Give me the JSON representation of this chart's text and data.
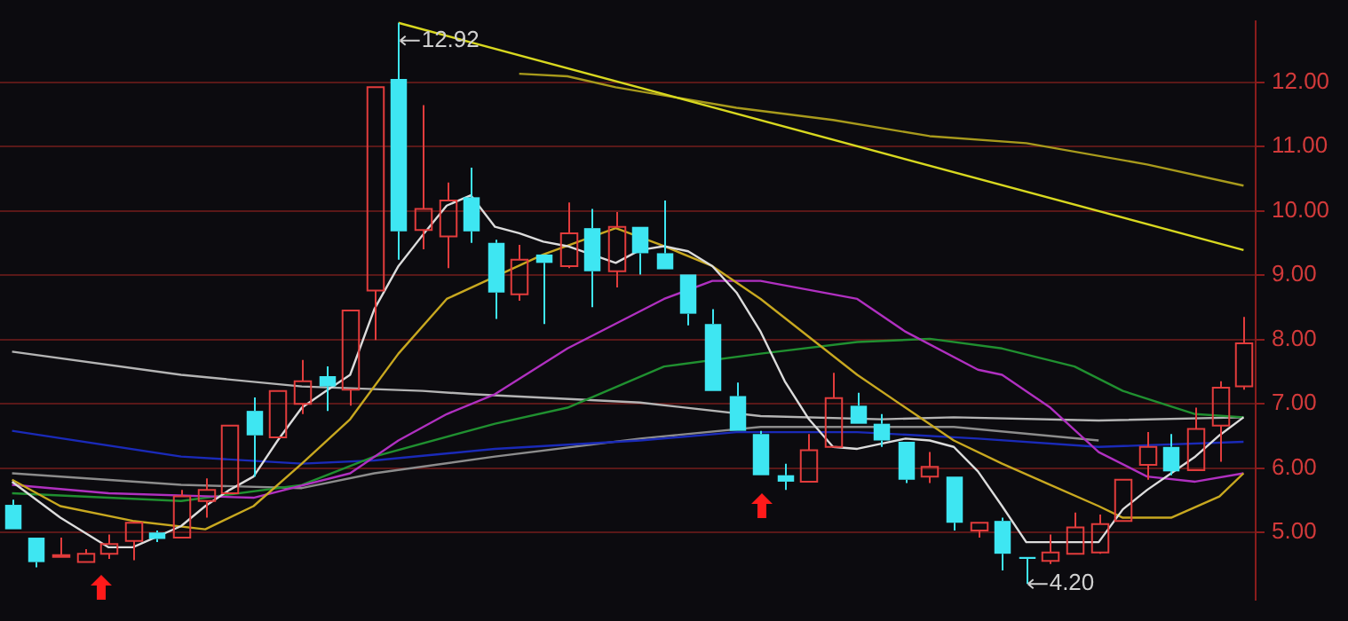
{
  "chart_data": {
    "type": "candlestick",
    "categories": [
      null,
      null,
      null,
      null,
      null,
      null,
      null,
      null,
      null,
      null,
      null,
      null,
      null,
      null,
      null,
      null,
      null,
      null,
      null,
      null,
      null,
      null,
      null,
      null,
      null,
      null,
      null,
      null,
      null,
      null,
      null,
      null,
      null,
      null,
      null,
      null,
      null,
      null,
      null,
      null,
      null,
      null,
      null,
      null,
      null,
      null,
      null,
      null,
      null,
      null,
      null,
      null
    ],
    "ohlc": [
      [
        5.43,
        5.51,
        5.05,
        5.05
      ],
      [
        4.92,
        4.92,
        4.46,
        4.54
      ],
      [
        4.62,
        4.92,
        4.62,
        4.65
      ],
      [
        4.54,
        4.74,
        4.54,
        4.67
      ],
      [
        4.67,
        4.97,
        4.59,
        4.82
      ],
      [
        4.87,
        5.17,
        4.57,
        5.15
      ],
      [
        5.0,
        5.03,
        4.85,
        4.9
      ],
      [
        4.92,
        5.66,
        4.92,
        5.56
      ],
      [
        5.49,
        5.84,
        5.23,
        5.66
      ],
      [
        5.61,
        6.66,
        5.61,
        6.66
      ],
      [
        6.89,
        7.1,
        5.87,
        6.51
      ],
      [
        6.48,
        7.2,
        6.48,
        7.2
      ],
      [
        7.0,
        7.68,
        6.84,
        7.35
      ],
      [
        7.43,
        7.58,
        6.89,
        7.27
      ],
      [
        7.22,
        8.45,
        6.97,
        8.45
      ],
      [
        8.76,
        11.92,
        7.99,
        11.92
      ],
      [
        12.05,
        12.92,
        9.24,
        9.68
      ],
      [
        9.7,
        11.64,
        9.4,
        10.03
      ],
      [
        9.6,
        10.44,
        9.11,
        10.16
      ],
      [
        10.21,
        10.67,
        9.5,
        9.68
      ],
      [
        9.5,
        9.55,
        8.32,
        8.73
      ],
      [
        8.7,
        9.47,
        8.6,
        9.24
      ],
      [
        9.32,
        9.32,
        8.24,
        9.19
      ],
      [
        9.14,
        10.13,
        9.11,
        9.65
      ],
      [
        9.73,
        10.03,
        8.5,
        9.06
      ],
      [
        9.06,
        9.98,
        8.81,
        9.75
      ],
      [
        9.75,
        9.75,
        9.01,
        9.34
      ],
      [
        9.34,
        10.16,
        9.09,
        9.09
      ],
      [
        9.01,
        9.01,
        8.22,
        8.4
      ],
      [
        8.24,
        8.47,
        7.2,
        7.2
      ],
      [
        7.12,
        7.33,
        6.58,
        6.58
      ],
      [
        6.53,
        6.58,
        5.89,
        5.89
      ],
      [
        5.89,
        6.07,
        5.66,
        5.79
      ],
      [
        5.79,
        6.53,
        5.79,
        6.28
      ],
      [
        6.33,
        7.48,
        6.33,
        7.09
      ],
      [
        6.97,
        7.17,
        6.69,
        6.69
      ],
      [
        6.69,
        6.84,
        6.33,
        6.43
      ],
      [
        6.41,
        6.41,
        5.77,
        5.82
      ],
      [
        5.87,
        6.25,
        5.77,
        6.02
      ],
      [
        5.87,
        5.87,
        5.03,
        5.15
      ],
      [
        5.03,
        5.15,
        4.92,
        5.15
      ],
      [
        5.18,
        5.23,
        4.41,
        4.67
      ],
      [
        4.62,
        4.62,
        4.2,
        4.59
      ],
      [
        4.56,
        4.97,
        4.51,
        4.69
      ],
      [
        4.67,
        5.31,
        4.67,
        5.08
      ],
      [
        4.69,
        5.28,
        4.67,
        5.13
      ],
      [
        5.18,
        5.82,
        5.18,
        5.82
      ],
      [
        6.05,
        6.56,
        5.82,
        6.33
      ],
      [
        6.33,
        6.53,
        5.89,
        5.95
      ],
      [
        5.97,
        6.94,
        5.97,
        6.61
      ],
      [
        6.66,
        7.35,
        6.1,
        7.25
      ],
      [
        7.27,
        8.35,
        7.22,
        7.94
      ]
    ],
    "colors": [
      "#3ee6f2",
      "#3ee6f2",
      "#e23c3c",
      "#e23c3c",
      "#e23c3c",
      "#e23c3c",
      "#3ee6f2",
      "#e23c3c",
      "#e23c3c",
      "#e23c3c",
      "#3ee6f2",
      "#e23c3c",
      "#e23c3c",
      "#3ee6f2",
      "#e23c3c",
      "#e23c3c",
      "#3ee6f2",
      "#e23c3c",
      "#e23c3c",
      "#3ee6f2",
      "#3ee6f2",
      "#e23c3c",
      "#3ee6f2",
      "#e23c3c",
      "#3ee6f2",
      "#e23c3c",
      "#3ee6f2",
      "#3ee6f2",
      "#3ee6f2",
      "#3ee6f2",
      "#3ee6f2",
      "#3ee6f2",
      "#3ee6f2",
      "#e23c3c",
      "#e23c3c",
      "#3ee6f2",
      "#3ee6f2",
      "#3ee6f2",
      "#e23c3c",
      "#3ee6f2",
      "#e23c3c",
      "#3ee6f2",
      "#3ee6f2",
      "#e23c3c",
      "#e23c3c",
      "#e23c3c",
      "#e23c3c",
      "#e23c3c",
      "#3ee6f2",
      "#e23c3c",
      "#e23c3c",
      "#e23c3c"
    ],
    "series": [
      {
        "type": "line",
        "color": "#dcdcdc",
        "values": [
          5.79,
          null,
          5.23,
          null,
          4.77,
          4.77,
          null,
          5.1,
          5.41,
          5.66,
          5.87,
          6.43,
          6.94,
          7.2,
          7.45,
          8.47,
          9.14,
          9.62,
          10.08,
          10.24,
          9.75,
          9.65,
          9.52,
          9.45,
          null,
          9.19,
          9.39,
          9.45,
          9.37,
          9.14,
          8.73,
          8.12,
          7.35,
          6.76,
          6.33,
          6.3,
          6.38,
          6.46,
          6.43,
          6.33,
          5.95,
          5.41,
          4.85,
          4.85,
          4.85,
          4.85,
          5.36,
          5.66,
          5.92,
          6.18,
          6.51,
          6.79
        ]
      },
      {
        "type": "line",
        "color": "#c8a820",
        "values": [
          5.82,
          null,
          5.41,
          null,
          null,
          5.18,
          null,
          null,
          5.05,
          null,
          5.41,
          null,
          6.07,
          null,
          6.76,
          null,
          7.78,
          null,
          8.63,
          null,
          null,
          null,
          9.32,
          null,
          null,
          9.73,
          null,
          9.45,
          null,
          9.14,
          null,
          8.63,
          null,
          8.04,
          null,
          7.45,
          null,
          6.94,
          null,
          6.43,
          null,
          6.07,
          null,
          5.74,
          null,
          5.41,
          5.23,
          null,
          5.23,
          null,
          5.56,
          5.92
        ]
      },
      {
        "type": "line",
        "color": "#b030c0",
        "values": [
          5.74,
          null,
          null,
          null,
          5.61,
          null,
          null,
          null,
          null,
          null,
          5.54,
          null,
          null,
          null,
          5.92,
          null,
          6.43,
          null,
          6.84,
          null,
          7.15,
          null,
          null,
          7.86,
          null,
          null,
          null,
          8.63,
          null,
          8.91,
          null,
          8.91,
          null,
          null,
          null,
          8.63,
          null,
          8.12,
          null,
          null,
          7.53,
          7.45,
          null,
          6.94,
          null,
          6.25,
          null,
          5.87,
          null,
          5.79,
          null,
          5.92
        ]
      },
      {
        "type": "line",
        "color": "#209030",
        "values": [
          5.61,
          null,
          null,
          null,
          null,
          null,
          null,
          5.49,
          null,
          null,
          null,
          null,
          5.74,
          null,
          null,
          6.18,
          null,
          null,
          null,
          null,
          6.69,
          null,
          null,
          6.94,
          null,
          null,
          null,
          7.58,
          null,
          null,
          null,
          7.78,
          null,
          null,
          null,
          7.96,
          null,
          null,
          8.01,
          null,
          null,
          7.86,
          null,
          null,
          7.58,
          null,
          7.2,
          null,
          null,
          6.84,
          null,
          6.79
        ]
      },
      {
        "type": "line",
        "color": "#1a2ab8",
        "values": [
          6.58,
          null,
          null,
          null,
          null,
          null,
          null,
          6.18,
          null,
          null,
          null,
          null,
          6.07,
          null,
          null,
          6.12,
          null,
          null,
          null,
          null,
          6.3,
          null,
          null,
          null,
          null,
          null,
          6.43,
          null,
          null,
          null,
          6.56,
          null,
          null,
          null,
          null,
          6.56,
          null,
          null,
          null,
          null,
          6.46,
          null,
          null,
          null,
          null,
          6.33,
          null,
          null,
          null,
          null,
          null,
          6.41
        ]
      },
      {
        "type": "line",
        "color": "#b4b4b4",
        "values": [
          7.81,
          null,
          null,
          null,
          null,
          null,
          null,
          7.45,
          null,
          null,
          null,
          null,
          7.27,
          null,
          null,
          null,
          null,
          7.2,
          null,
          7.15,
          null,
          null,
          null,
          null,
          null,
          null,
          7.02,
          null,
          null,
          null,
          null,
          6.81,
          null,
          null,
          null,
          null,
          6.76,
          null,
          null,
          6.79,
          null,
          null,
          null,
          null,
          null,
          6.74,
          null,
          null,
          null,
          null,
          null,
          6.79
        ]
      },
      {
        "type": "line",
        "color": "#8c8c8c",
        "values": [
          5.92,
          null,
          null,
          null,
          null,
          null,
          null,
          5.74,
          null,
          null,
          null,
          null,
          5.69,
          null,
          null,
          5.92,
          null,
          null,
          null,
          null,
          6.18,
          null,
          null,
          null,
          null,
          null,
          6.46,
          null,
          null,
          null,
          null,
          6.64,
          null,
          null,
          null,
          null,
          null,
          null,
          null,
          6.64,
          null,
          null,
          null,
          null,
          null,
          6.43,
          null,
          null,
          null,
          null,
          null,
          null
        ]
      },
      {
        "type": "line",
        "color": "#d8d820",
        "values": [
          null,
          null,
          null,
          null,
          null,
          null,
          null,
          null,
          null,
          null,
          null,
          null,
          null,
          null,
          null,
          null,
          12.92,
          null,
          null,
          null,
          null,
          null,
          null,
          null,
          null,
          null,
          null,
          null,
          null,
          null,
          null,
          null,
          null,
          null,
          null,
          null,
          null,
          null,
          null,
          null,
          null,
          null,
          null,
          null,
          null,
          null,
          null,
          null,
          null,
          null,
          null,
          9.39
        ]
      },
      {
        "type": "line",
        "color": "#a89a1c",
        "values": [
          null,
          null,
          null,
          null,
          null,
          null,
          null,
          null,
          null,
          null,
          null,
          null,
          null,
          null,
          null,
          null,
          null,
          null,
          null,
          null,
          null,
          12.13,
          null,
          12.09,
          null,
          11.92,
          null,
          null,
          null,
          null,
          11.6,
          null,
          null,
          null,
          11.41,
          null,
          null,
          null,
          11.16,
          null,
          null,
          null,
          11.05,
          null,
          null,
          null,
          null,
          10.72,
          null,
          null,
          null,
          10.39
        ]
      }
    ],
    "ylim": [
      3.95,
      12.95
    ],
    "yticks": [
      {
        "value": 5,
        "label": "5.00"
      },
      {
        "value": 6,
        "label": "6.00"
      },
      {
        "value": 7,
        "label": "7.00"
      },
      {
        "value": 8,
        "label": "8.00"
      },
      {
        "value": 9,
        "label": "9.00"
      },
      {
        "value": 10,
        "label": "10.00"
      },
      {
        "value": 11,
        "label": "11.00"
      },
      {
        "value": 12,
        "label": "12.00"
      }
    ],
    "annotations": [
      "12.92",
      "4.20"
    ],
    "grid": "y",
    "legend": false,
    "tick_labels": "y",
    "marker": "none"
  }
}
